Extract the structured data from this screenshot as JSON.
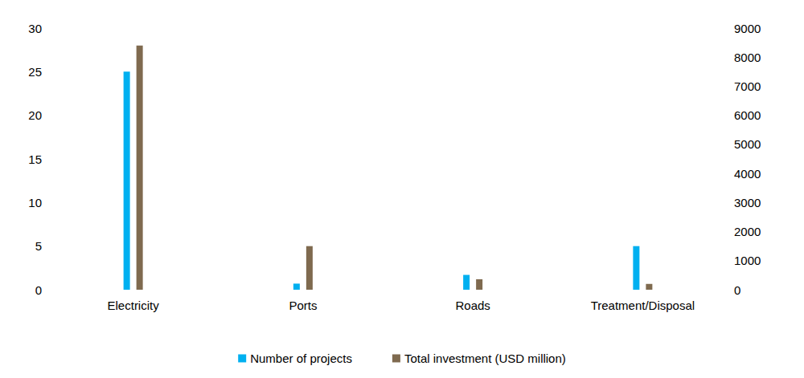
{
  "chart_data": {
    "type": "bar",
    "categories": [
      "Electricity",
      "Ports",
      "Roads",
      "Treatment/Disposal"
    ],
    "series": [
      {
        "name": "Number of projects",
        "color": "#00b0f0",
        "values": [
          25,
          0.7,
          1.7,
          5
        ]
      },
      {
        "name": "Total investment (USD million)",
        "color": "#7f6a4f",
        "axis": "y2",
        "values": [
          8400,
          1500,
          360,
          200
        ]
      }
    ],
    "ylim": [
      0,
      30
    ],
    "yticks": [
      0,
      5,
      10,
      15,
      20,
      25,
      30
    ],
    "y2lim": [
      0,
      9000
    ],
    "y2ticks": [
      0,
      1000,
      2000,
      3000,
      4000,
      5000,
      6000,
      7000,
      8000,
      9000
    ],
    "grid": false,
    "legend": "bottom"
  }
}
